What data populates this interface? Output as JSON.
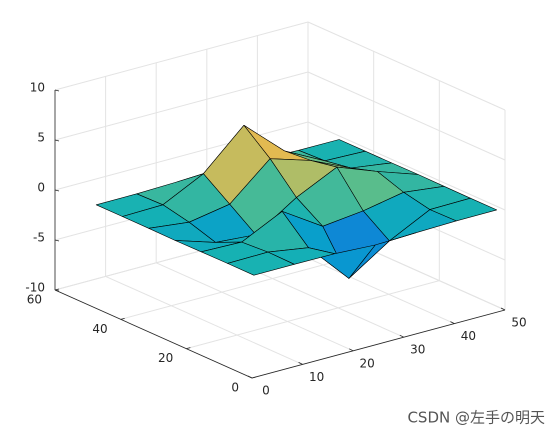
{
  "chart_data": {
    "type": "surface",
    "x": [
      1,
      9,
      17,
      25,
      33,
      41,
      49
    ],
    "y": [
      1,
      9,
      17,
      25,
      33,
      41,
      49
    ],
    "z": [
      [
        0,
        0,
        -0.03,
        -0.25,
        -0.11,
        -0.01,
        0
      ],
      [
        0,
        0.05,
        -0.6,
        -4.76,
        -2.1,
        -0.06,
        0
      ],
      [
        -0.01,
        -0.13,
        1.85,
        -0.72,
        -0.27,
        0.5,
        0.01
      ],
      [
        -0.04,
        -1.33,
        -1.65,
        0.98,
        2.94,
        1.41,
        0.03
      ],
      [
        -0.01,
        -0.48,
        0.23,
        3.69,
        2.43,
        0.58,
        0.01
      ],
      [
        0,
        0.08,
        2.1,
        5.86,
        2.21,
        0.13,
        0
      ],
      [
        0,
        0.01,
        0.11,
        0.3,
        0.11,
        0.01,
        0
      ]
    ],
    "xlim": [
      0,
      50
    ],
    "ylim": [
      0,
      60
    ],
    "zlim": [
      -10,
      10
    ],
    "xticks": [
      0,
      10,
      20,
      30,
      40,
      50
    ],
    "yticks": [
      0,
      20,
      40,
      60
    ],
    "zticks": [
      -10,
      -5,
      0,
      5,
      10
    ],
    "grid": true,
    "colormap": "parula",
    "edge_color": "#000000"
  },
  "watermark": "CSDN @左手の明天"
}
